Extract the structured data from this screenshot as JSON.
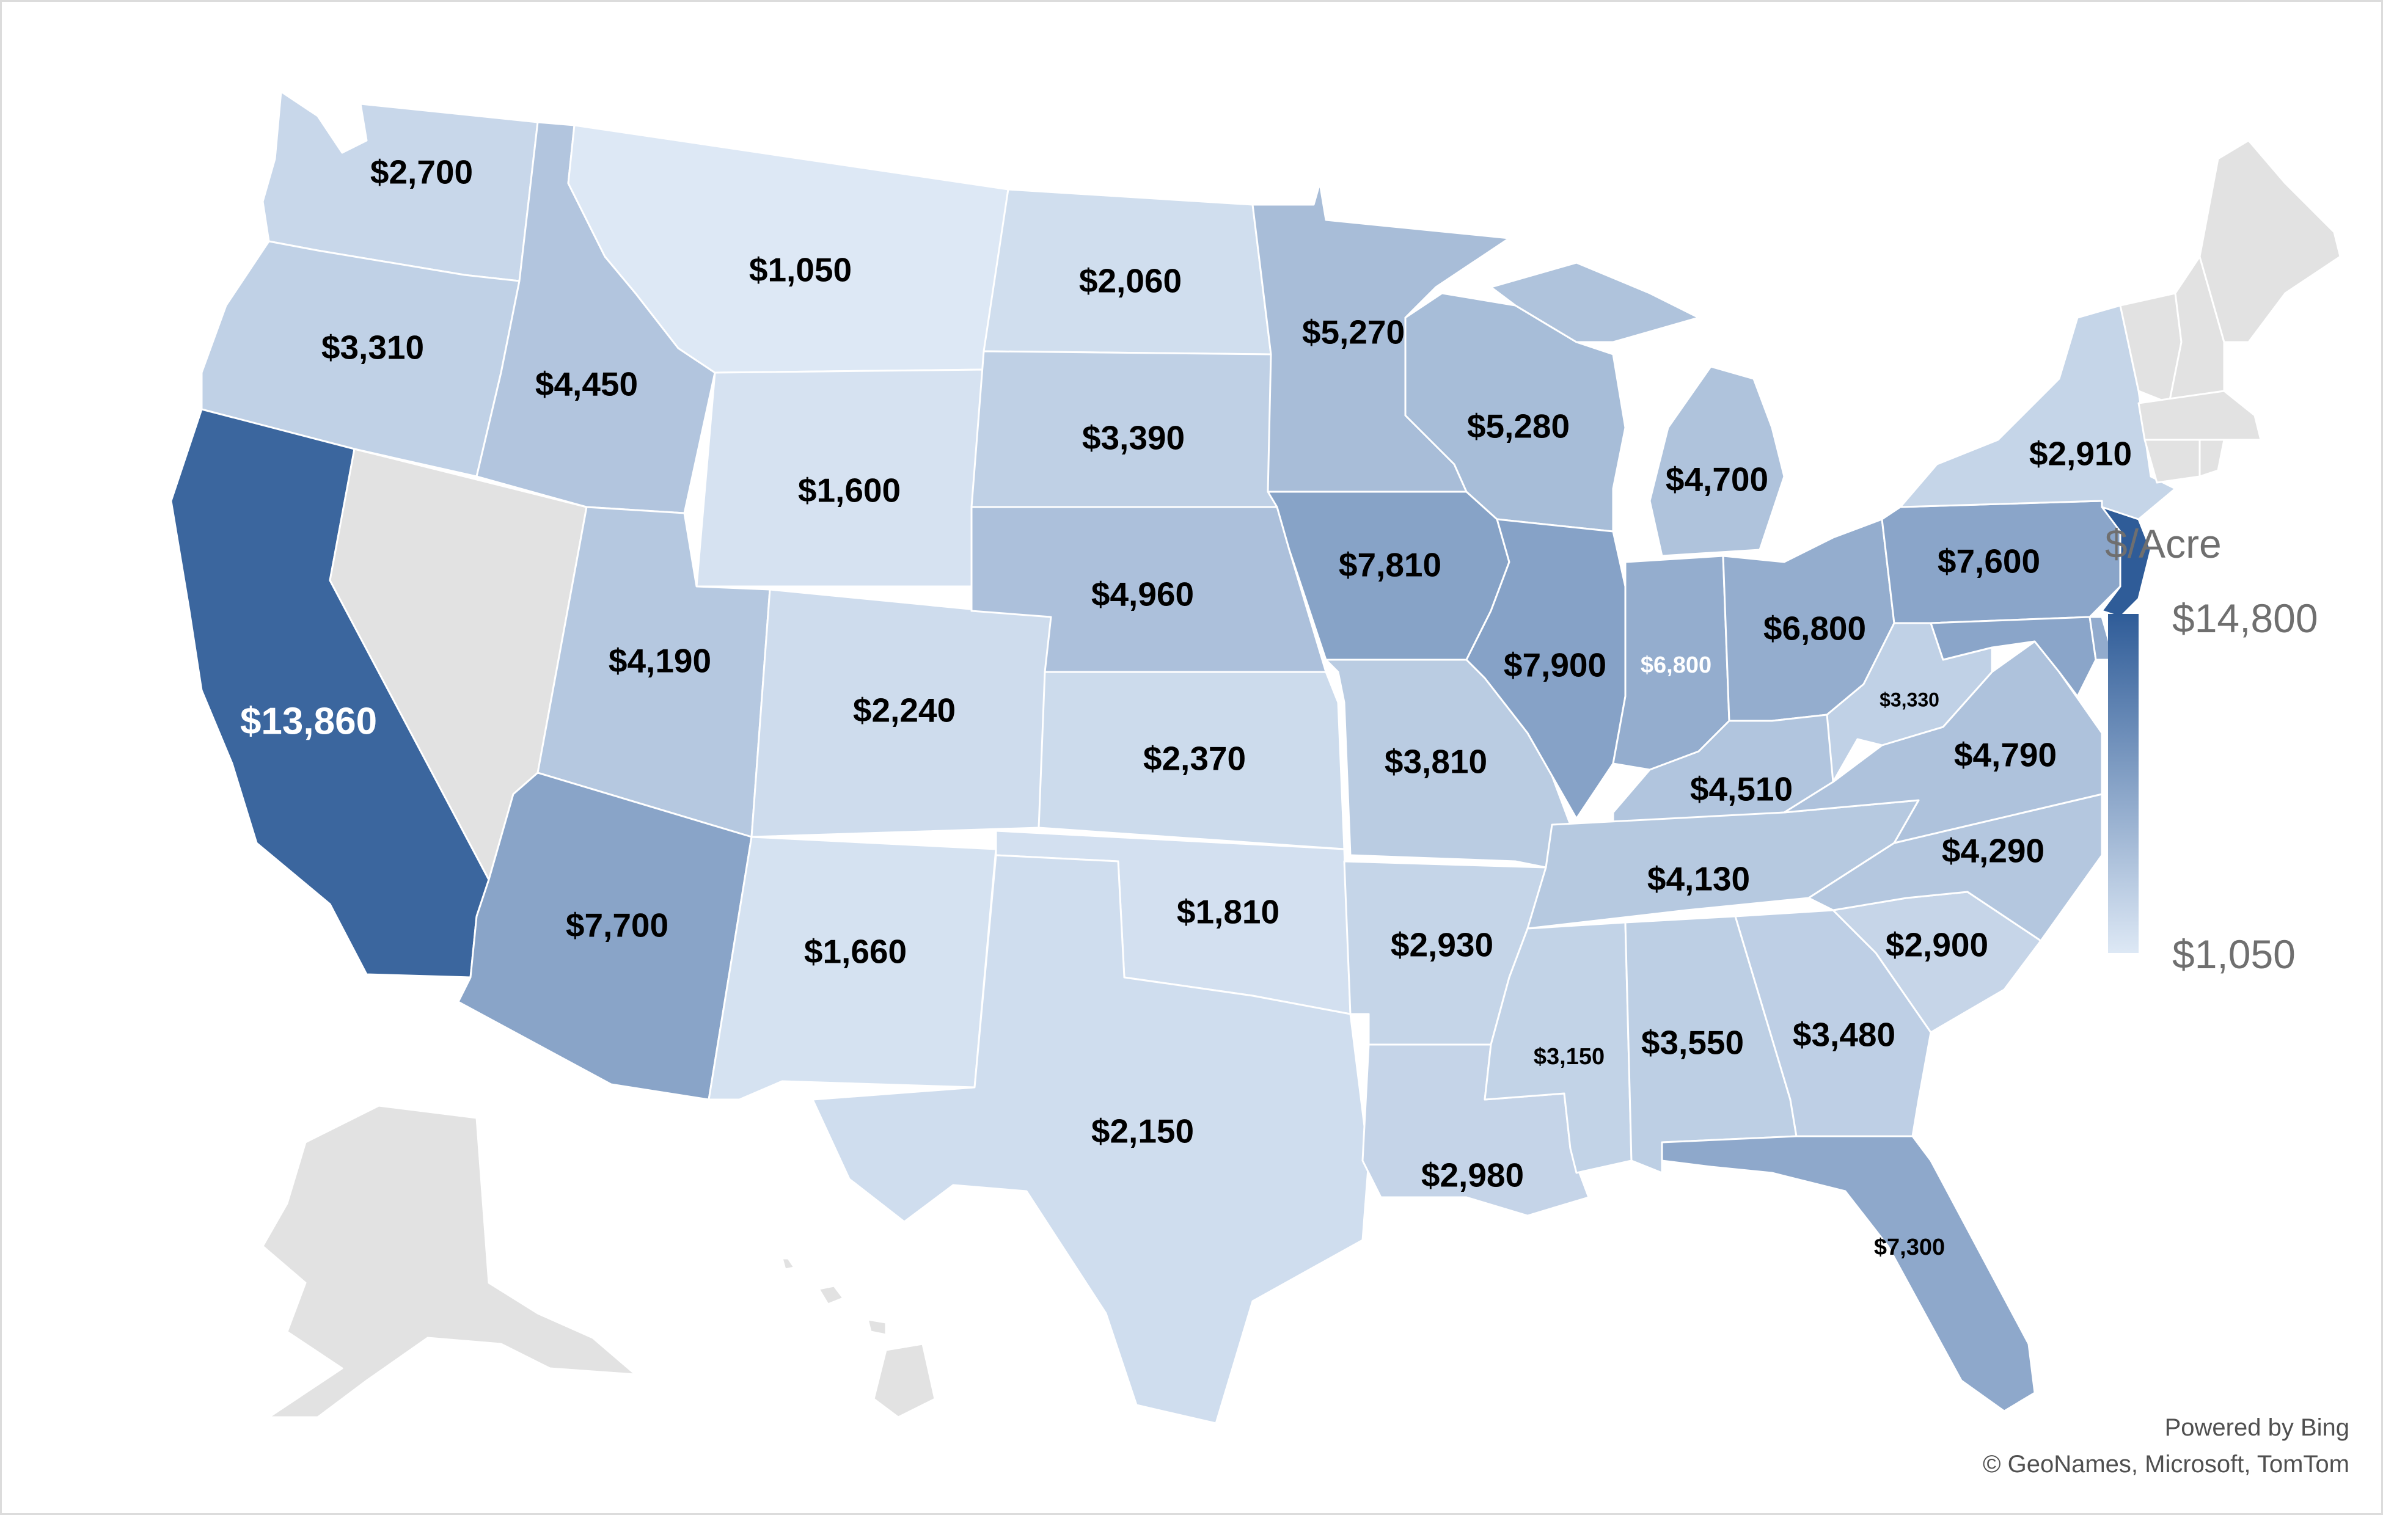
{
  "legend": {
    "title": "$/Acre",
    "max_label": "$14,800",
    "min_label": "$1,050",
    "color_max": "#2f5c98",
    "color_min": "#dde8f5",
    "no_data_color": "#e2e2e2"
  },
  "credits": {
    "line1": "Powered by Bing",
    "line2": "© GeoNames, Microsoft, TomTom"
  },
  "states": [
    {
      "abbr": "WA",
      "value": 2700,
      "label": "$2,700"
    },
    {
      "abbr": "OR",
      "value": 3310,
      "label": "$3,310"
    },
    {
      "abbr": "CA",
      "value": 13860,
      "label": "$13,860"
    },
    {
      "abbr": "ID",
      "value": 4450,
      "label": "$4,450"
    },
    {
      "abbr": "MT",
      "value": 1050,
      "label": "$1,050"
    },
    {
      "abbr": "WY",
      "value": 1600,
      "label": "$1,600"
    },
    {
      "abbr": "UT",
      "value": 4190,
      "label": "$4,190"
    },
    {
      "abbr": "AZ",
      "value": 7700,
      "label": "$7,700"
    },
    {
      "abbr": "CO",
      "value": 2240,
      "label": "$2,240"
    },
    {
      "abbr": "NM",
      "value": 1660,
      "label": "$1,660"
    },
    {
      "abbr": "ND",
      "value": 2060,
      "label": "$2,060"
    },
    {
      "abbr": "SD",
      "value": 3390,
      "label": "$3,390"
    },
    {
      "abbr": "NE",
      "value": 4960,
      "label": "$4,960"
    },
    {
      "abbr": "KS",
      "value": 2370,
      "label": "$2,370"
    },
    {
      "abbr": "OK",
      "value": 1810,
      "label": "$1,810"
    },
    {
      "abbr": "TX",
      "value": 2150,
      "label": "$2,150"
    },
    {
      "abbr": "MN",
      "value": 5270,
      "label": "$5,270"
    },
    {
      "abbr": "IA",
      "value": 7810,
      "label": "$7,810"
    },
    {
      "abbr": "MO",
      "value": 3810,
      "label": "$3,810"
    },
    {
      "abbr": "AR",
      "value": 2930,
      "label": "$2,930"
    },
    {
      "abbr": "LA",
      "value": 2980,
      "label": "$2,980"
    },
    {
      "abbr": "WI",
      "value": 5280,
      "label": "$5,280"
    },
    {
      "abbr": "IL",
      "value": 7900,
      "label": "$7,900"
    },
    {
      "abbr": "MI",
      "value": 4700,
      "label": "$4,700"
    },
    {
      "abbr": "IN",
      "value": 6800,
      "label": "$6,800"
    },
    {
      "abbr": "OH",
      "value": 6800,
      "label": "$6,800"
    },
    {
      "abbr": "KY",
      "value": 4510,
      "label": "$4,510"
    },
    {
      "abbr": "TN",
      "value": 4130,
      "label": "$4,130"
    },
    {
      "abbr": "MS",
      "value": 3150,
      "label": "$3,150"
    },
    {
      "abbr": "AL",
      "value": 3550,
      "label": "$3,550"
    },
    {
      "abbr": "GA",
      "value": 3480,
      "label": "$3,480"
    },
    {
      "abbr": "FL",
      "value": 7300,
      "label": "$7,300"
    },
    {
      "abbr": "SC",
      "value": 2900,
      "label": "$2,900"
    },
    {
      "abbr": "NC",
      "value": 4290,
      "label": "$4,290"
    },
    {
      "abbr": "VA",
      "value": 4790,
      "label": "$4,790"
    },
    {
      "abbr": "WV",
      "value": 3330,
      "label": "$3,330"
    },
    {
      "abbr": "PA",
      "value": 7600,
      "label": "$7,600"
    },
    {
      "abbr": "NY",
      "value": 2910,
      "label": "$2,910"
    },
    {
      "abbr": "NJ",
      "value": 14800,
      "label": ""
    },
    {
      "abbr": "MD",
      "value": 7600,
      "label": ""
    },
    {
      "abbr": "DE",
      "value": 7000,
      "label": ""
    },
    {
      "abbr": "NV",
      "value": null,
      "label": ""
    },
    {
      "abbr": "ME",
      "value": null,
      "label": ""
    },
    {
      "abbr": "NH",
      "value": null,
      "label": ""
    },
    {
      "abbr": "VT",
      "value": null,
      "label": ""
    },
    {
      "abbr": "MA",
      "value": null,
      "label": ""
    },
    {
      "abbr": "CT",
      "value": null,
      "label": ""
    },
    {
      "abbr": "RI",
      "value": null,
      "label": ""
    },
    {
      "abbr": "AK",
      "value": null,
      "label": ""
    },
    {
      "abbr": "HI",
      "value": null,
      "label": ""
    }
  ]
}
